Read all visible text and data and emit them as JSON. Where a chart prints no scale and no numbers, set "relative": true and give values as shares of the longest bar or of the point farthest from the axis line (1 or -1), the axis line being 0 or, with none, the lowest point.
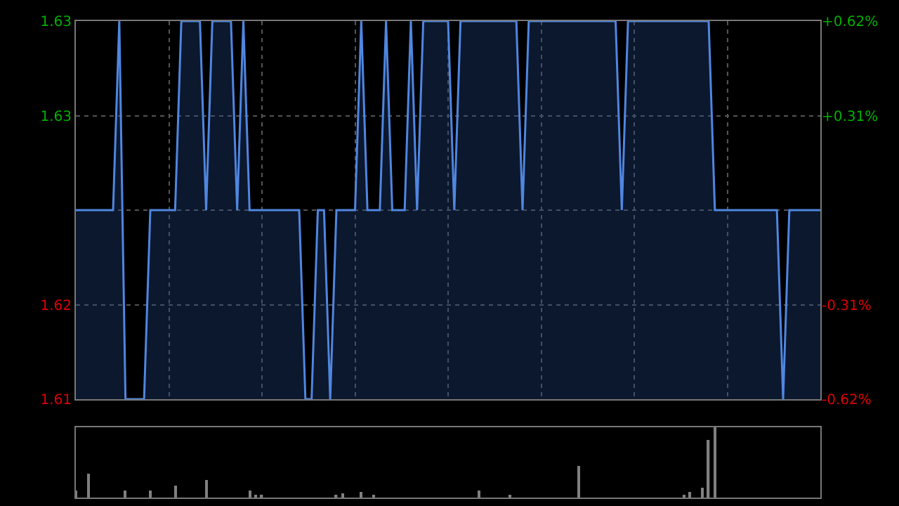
{
  "chart_data": [
    {
      "type": "area",
      "categories": [
        null,
        null,
        null,
        null,
        null,
        null,
        null,
        null,
        null,
        null,
        null,
        null,
        null,
        null,
        null,
        null,
        null,
        null,
        null,
        null,
        null,
        null,
        null,
        null,
        null,
        null,
        null,
        null,
        null,
        null,
        null,
        null,
        null,
        null,
        null,
        null,
        null,
        null,
        null,
        null,
        null,
        null,
        null,
        null,
        null,
        null,
        null,
        null,
        null,
        null,
        null,
        null,
        null,
        null,
        null,
        null,
        null,
        null,
        null,
        null,
        null,
        null,
        null,
        null,
        null,
        null,
        null,
        null,
        null,
        null,
        null,
        null,
        null,
        null,
        null,
        null,
        null,
        null,
        null,
        null,
        null,
        null,
        null,
        null,
        null,
        null,
        null,
        null,
        null,
        null,
        null,
        null,
        null,
        null,
        null,
        null,
        null,
        null,
        null,
        null,
        null,
        null,
        null,
        null,
        null,
        null,
        null,
        null,
        null,
        null,
        null,
        null,
        null,
        null,
        null,
        null,
        null,
        null,
        null,
        null,
        null
      ],
      "series": [
        {
          "color": "#4f86e0",
          "values": [
            1.62,
            1.62,
            1.62,
            1.62,
            1.62,
            1.62,
            1.62,
            1.63,
            1.61,
            1.61,
            1.61,
            1.61,
            1.62,
            1.62,
            1.62,
            1.62,
            1.62,
            1.63,
            1.63,
            1.63,
            1.63,
            1.62,
            1.63,
            1.63,
            1.63,
            1.63,
            1.62,
            1.63,
            1.62,
            1.62,
            1.62,
            1.62,
            1.62,
            1.62,
            1.62,
            1.62,
            1.62,
            1.61,
            1.61,
            1.62,
            1.62,
            1.61,
            1.62,
            1.62,
            1.62,
            1.62,
            1.63,
            1.62,
            1.62,
            1.62,
            1.63,
            1.62,
            1.62,
            1.62,
            1.63,
            1.62,
            1.63,
            1.63,
            1.63,
            1.63,
            1.63,
            1.62,
            1.63,
            1.63,
            1.63,
            1.63,
            1.63,
            1.63,
            1.63,
            1.63,
            1.63,
            1.63,
            1.62,
            1.63,
            1.63,
            1.63,
            1.63,
            1.63,
            1.63,
            1.63,
            1.63,
            1.63,
            1.63,
            1.63,
            1.63,
            1.63,
            1.63,
            1.63,
            1.62,
            1.63,
            1.63,
            1.63,
            1.63,
            1.63,
            1.63,
            1.63,
            1.63,
            1.63,
            1.63,
            1.63,
            1.63,
            1.63,
            1.63,
            1.62,
            1.62,
            1.62,
            1.62,
            1.62,
            1.62,
            1.62,
            1.62,
            1.62,
            1.62,
            1.62,
            1.61,
            1.62,
            1.62,
            1.62,
            1.62,
            1.62,
            1.62
          ]
        }
      ],
      "ylim": [
        1.61,
        1.63
      ],
      "yticks": [
        {
          "value": 1.63,
          "label": "1.63"
        },
        {
          "value": 1.625,
          "label": "1.63"
        },
        {
          "value": 1.62,
          "label": null
        },
        {
          "value": 1.615,
          "label": "1.62"
        },
        {
          "value": 1.61,
          "label": "1.61"
        }
      ],
      "y2lim": [
        -0.62,
        0.62
      ],
      "y2ticks": [
        {
          "value": 0.62,
          "label": "+0.62%"
        },
        {
          "value": 0.31,
          "label": "+0.31%"
        },
        {
          "value": 0,
          "label": null
        },
        {
          "value": -0.31,
          "label": "-0.31%"
        },
        {
          "value": -0.62,
          "label": "-0.62%"
        }
      ],
      "grid": true,
      "tick_labels": "y",
      "line_style": "solid",
      "marker": "none"
    },
    {
      "type": "bar",
      "relative": true,
      "categories": [
        null,
        null,
        null,
        null,
        null,
        null,
        null,
        null,
        null,
        null,
        null,
        null,
        null,
        null,
        null,
        null,
        null,
        null,
        null,
        null,
        null,
        null,
        null,
        null,
        null,
        null,
        null,
        null,
        null,
        null,
        null,
        null,
        null,
        null,
        null,
        null,
        null,
        null,
        null,
        null,
        null,
        null,
        null,
        null,
        null,
        null,
        null,
        null,
        null,
        null,
        null,
        null,
        null,
        null,
        null,
        null,
        null,
        null,
        null,
        null,
        null,
        null,
        null,
        null,
        null,
        null,
        null,
        null,
        null,
        null,
        null,
        null,
        null,
        null,
        null,
        null,
        null,
        null,
        null,
        null,
        null,
        null,
        null,
        null,
        null,
        null,
        null,
        null,
        null,
        null,
        null,
        null,
        null,
        null,
        null,
        null,
        null,
        null,
        null,
        null,
        null,
        null,
        null,
        null,
        null,
        null,
        null,
        null,
        null,
        null,
        null,
        null,
        null,
        null,
        null,
        null,
        null,
        null,
        null,
        null,
        null
      ],
      "series": [
        {
          "color": "#808080",
          "values": [
            0.1,
            0,
            0.34,
            0,
            0,
            0,
            0,
            0,
            0.1,
            0,
            0,
            0,
            0.1,
            0,
            0,
            0,
            0.17,
            0,
            0,
            0,
            0,
            0.25,
            0,
            0,
            0,
            0,
            0,
            0,
            0.1,
            0.04,
            0.04,
            0,
            0,
            0,
            0,
            0,
            0,
            0,
            0,
            0,
            0,
            0,
            0.04,
            0.06,
            0,
            0,
            0.08,
            0,
            0.04,
            0,
            0,
            0,
            0,
            0,
            0,
            0,
            0,
            0,
            0,
            0,
            0,
            0,
            0,
            0,
            0,
            0.1,
            0,
            0,
            0,
            0,
            0.04,
            0,
            0,
            0,
            0,
            0,
            0,
            0,
            0,
            0,
            0,
            0.45,
            0,
            0,
            0,
            0,
            0,
            0,
            0,
            0,
            0,
            0,
            0,
            0,
            0,
            0,
            0,
            0,
            0.04,
            0.08,
            0,
            0.14,
            0.82,
            1,
            0,
            0,
            0,
            0,
            0,
            0,
            0,
            0,
            0,
            0,
            0,
            0,
            0,
            0,
            0,
            0,
            0
          ]
        }
      ],
      "tick_labels": false
    }
  ]
}
